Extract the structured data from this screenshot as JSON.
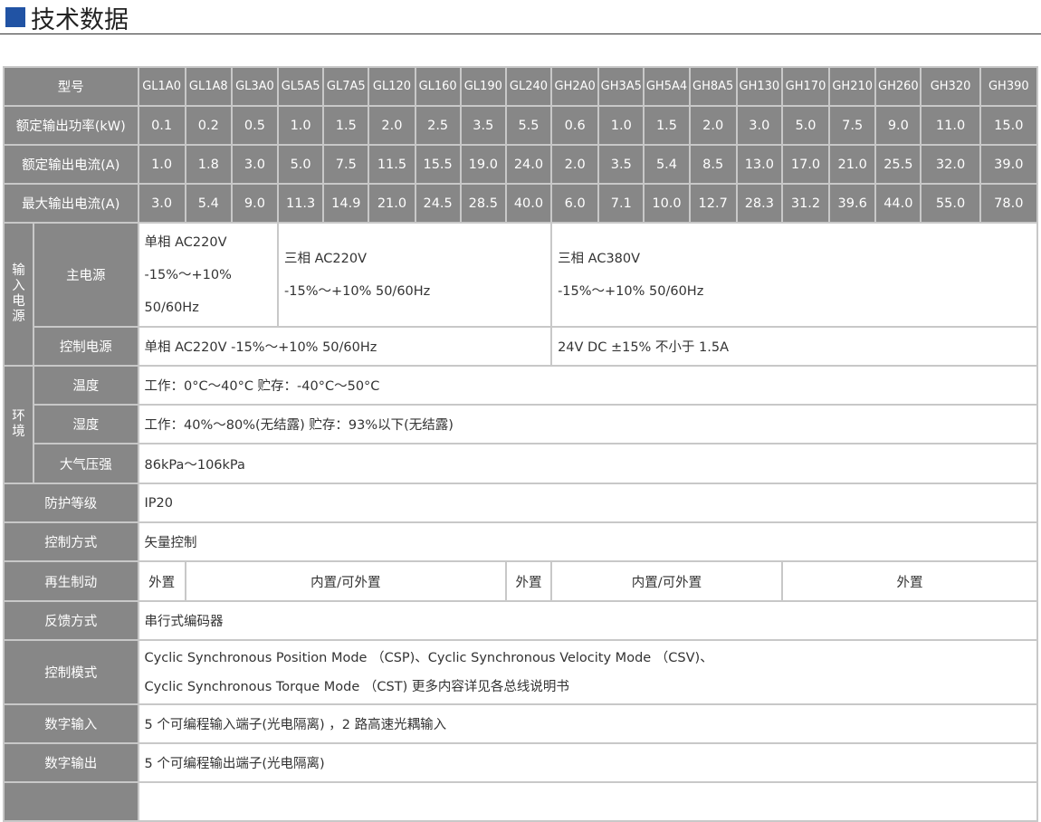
{
  "title": "技术数据",
  "colors": {
    "accent": "#2153a4",
    "header_bg": "#878787",
    "grid": "#c8c8c8"
  },
  "models_label": "型号",
  "models": [
    "GL1A0",
    "GL1A8",
    "GL3A0",
    "GL5A5",
    "GL7A5",
    "GL120",
    "GL160",
    "GL190",
    "GL240",
    "GH2A0",
    "GH3A5",
    "GH5A4",
    "GH8A5",
    "GH130",
    "GH170",
    "GH210",
    "GH260",
    "GH320",
    "GH390"
  ],
  "rating_rows": [
    {
      "label": "额定输出功率(kW)",
      "values": [
        "0.1",
        "0.2",
        "0.5",
        "1.0",
        "1.5",
        "2.0",
        "2.5",
        "3.5",
        "5.5",
        "0.6",
        "1.0",
        "1.5",
        "2.0",
        "3.0",
        "5.0",
        "7.5",
        "9.0",
        "11.0",
        "15.0"
      ]
    },
    {
      "label": "额定输出电流(A)",
      "values": [
        "1.0",
        "1.8",
        "3.0",
        "5.0",
        "7.5",
        "11.5",
        "15.5",
        "19.0",
        "24.0",
        "2.0",
        "3.5",
        "5.4",
        "8.5",
        "13.0",
        "17.0",
        "21.0",
        "25.5",
        "32.0",
        "39.0"
      ]
    },
    {
      "label": "最大输出电流(A)",
      "values": [
        "3.0",
        "5.4",
        "9.0",
        "11.3",
        "14.9",
        "21.0",
        "24.5",
        "28.5",
        "40.0",
        "6.0",
        "7.1",
        "10.0",
        "12.7",
        "28.3",
        "31.2",
        "39.6",
        "44.0",
        "55.0",
        "78.0"
      ]
    }
  ],
  "input_power": {
    "group": "输入电源",
    "main_label": "主电源",
    "main": [
      [
        "单相 AC220V",
        "-15%～+10%",
        "50/60Hz"
      ],
      [
        "三相 AC220V",
        "-15%～+10% 50/60Hz"
      ],
      [
        "三相 AC380V",
        "-15%～+10% 50/60Hz"
      ]
    ],
    "control_label": "控制电源",
    "control": [
      "单相 AC220V -15%～+10% 50/60Hz",
      "24V DC  ±15%  不小于 1.5A"
    ]
  },
  "environment": {
    "group": "环境",
    "rows": [
      {
        "label": "温度",
        "value": "工作：0°C～40°C    贮存：-40°C～50°C"
      },
      {
        "label": "湿度",
        "value": "工作：40%～80%(无结露)    贮存：93%以下(无结露)"
      },
      {
        "label": "大气压强",
        "value": "86kPa～106kPa"
      }
    ]
  },
  "protection": {
    "label": "防护等级",
    "value": "IP20"
  },
  "control_method": {
    "label": "控制方式",
    "value": "矢量控制"
  },
  "regen": {
    "label": "再生制动",
    "values": [
      "外置",
      "内置/可外置",
      "外置",
      "内置/可外置",
      "外置"
    ]
  },
  "feedback": {
    "label": "反馈方式",
    "value": "串行式编码器"
  },
  "control_mode": {
    "label": "控制模式",
    "lines": [
      "Cyclic Synchronous Position Mode  （CSP)、Cyclic Synchronous Velocity Mode  （CSV)、",
      "Cyclic Synchronous Torque Mode  （CST)   更多内容详见各总线说明书"
    ]
  },
  "digital_input": {
    "label": "数字输入",
    "value": "5 个可编程输入端子(光电隔离)  ，2 路高速光耦输入"
  },
  "digital_output": {
    "label": "数字输出",
    "value": "5 个可编程输出端子(光电隔离)"
  }
}
